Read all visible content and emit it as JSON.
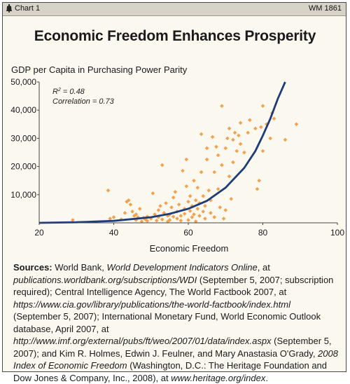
{
  "header": {
    "chart_tag": "Chart 1",
    "report_id": "WM 1861"
  },
  "colors": {
    "points": "#f4a14e",
    "curve": "#1d3c7a",
    "frame_bg": "#fbf8ef",
    "header_bg": "#d7d3c8"
  },
  "icons": [
    "liberty-bell-icon"
  ],
  "chart_data": {
    "type": "scatter",
    "title": "Economic Freedom Enhances Prosperity",
    "ylabel": "GDP per Capita in Purchasing Power Parity",
    "xlabel": "Economic Freedom",
    "xlim": [
      20,
      100
    ],
    "ylim": [
      0,
      50000
    ],
    "xticks": [
      "20",
      "40",
      "60",
      "80",
      "100"
    ],
    "yticks": [
      "10,000",
      "20,000",
      "30,000",
      "40,000",
      "50,000"
    ],
    "ytick_values": [
      10000,
      20000,
      30000,
      40000,
      50000
    ],
    "xtick_values": [
      20,
      40,
      60,
      80,
      100
    ],
    "grid": false,
    "annotations": {
      "r2_prefix": "R",
      "r2_sup": "2",
      "r2_suffix": " = 0.48",
      "correlation": "Correlation = 0.73"
    },
    "trendline": {
      "type": "exponential",
      "points": [
        [
          20,
          0
        ],
        [
          30,
          200
        ],
        [
          40,
          700
        ],
        [
          50,
          2000
        ],
        [
          55,
          3200
        ],
        [
          60,
          5000
        ],
        [
          65,
          7800
        ],
        [
          70,
          12500
        ],
        [
          75,
          19500
        ],
        [
          78,
          25500
        ],
        [
          80,
          31000
        ],
        [
          82,
          37000
        ],
        [
          84,
          44000
        ],
        [
          86,
          50000
        ]
      ]
    },
    "points": [
      [
        29,
        1000
      ],
      [
        38.5,
        11500
      ],
      [
        39,
        1500
      ],
      [
        40,
        2000
      ],
      [
        42,
        1200
      ],
      [
        43,
        3500
      ],
      [
        43.5,
        7500
      ],
      [
        44,
        8000
      ],
      [
        44.5,
        6500
      ],
      [
        45,
        4000
      ],
      [
        45.5,
        2500
      ],
      [
        46,
        3000
      ],
      [
        46,
        1000
      ],
      [
        46.5,
        2000
      ],
      [
        47,
        5000
      ],
      [
        47.5,
        500
      ],
      [
        48,
        1800
      ],
      [
        48.5,
        1200
      ],
      [
        49,
        700
      ],
      [
        49,
        2200
      ],
      [
        50,
        1500
      ],
      [
        50.5,
        10500
      ],
      [
        51,
        3000
      ],
      [
        51.5,
        800
      ],
      [
        52,
        2000
      ],
      [
        52,
        4500
      ],
      [
        52.5,
        6000
      ],
      [
        53,
        1200
      ],
      [
        53,
        20500
      ],
      [
        53.5,
        3500
      ],
      [
        54,
        7000
      ],
      [
        54.5,
        2500
      ],
      [
        54.5,
        500
      ],
      [
        55,
        1000
      ],
      [
        55,
        3000
      ],
      [
        55.5,
        5500
      ],
      [
        56,
        2200
      ],
      [
        56,
        9000
      ],
      [
        56.5,
        11000
      ],
      [
        57,
        1500
      ],
      [
        57,
        4000
      ],
      [
        57.5,
        6500
      ],
      [
        58,
        800
      ],
      [
        58,
        2500
      ],
      [
        58.5,
        18500
      ],
      [
        59,
        5000
      ],
      [
        59,
        3200
      ],
      [
        59.5,
        13000
      ],
      [
        59.5,
        22500
      ],
      [
        60,
        1000
      ],
      [
        60,
        7500
      ],
      [
        60.5,
        4200
      ],
      [
        60.5,
        9500
      ],
      [
        61,
        2000
      ],
      [
        61,
        6000
      ],
      [
        61.5,
        3000
      ],
      [
        61.5,
        15000
      ],
      [
        62,
        500
      ],
      [
        62,
        8000
      ],
      [
        62.5,
        5000
      ],
      [
        62.5,
        12500
      ],
      [
        63,
        2500
      ],
      [
        63,
        7000
      ],
      [
        63.5,
        18000
      ],
      [
        63.5,
        31500
      ],
      [
        64,
        4000
      ],
      [
        64,
        9500
      ],
      [
        64.5,
        1500
      ],
      [
        64.5,
        6000
      ],
      [
        65,
        22500
      ],
      [
        65,
        26500
      ],
      [
        65.5,
        11500
      ],
      [
        66,
        8000
      ],
      [
        66,
        3500
      ],
      [
        66.5,
        30500
      ],
      [
        67,
        18000
      ],
      [
        67,
        2000
      ],
      [
        67.5,
        27000
      ],
      [
        68,
        24000
      ],
      [
        68,
        12000
      ],
      [
        68.5,
        5500
      ],
      [
        69,
        20500
      ],
      [
        69,
        41500
      ],
      [
        69.5,
        1500
      ],
      [
        70,
        26500
      ],
      [
        70,
        4500
      ],
      [
        70.5,
        30000
      ],
      [
        71,
        33500
      ],
      [
        71,
        16500
      ],
      [
        71.5,
        8500
      ],
      [
        72,
        29500
      ],
      [
        72,
        21500
      ],
      [
        72.5,
        32000
      ],
      [
        73,
        25500
      ],
      [
        73.5,
        31000
      ],
      [
        74,
        35500
      ],
      [
        74,
        28000
      ],
      [
        75,
        25000
      ],
      [
        76,
        32000
      ],
      [
        76.5,
        36500
      ],
      [
        78,
        33500
      ],
      [
        78.5,
        12000
      ],
      [
        79,
        15000
      ],
      [
        79.5,
        34000
      ],
      [
        80,
        25500
      ],
      [
        80,
        41500
      ],
      [
        81,
        35000
      ],
      [
        82,
        30000
      ],
      [
        82.5,
        39000
      ],
      [
        83,
        37000
      ],
      [
        86,
        29500
      ],
      [
        89,
        35000
      ]
    ]
  },
  "sources": {
    "label": "Sources:",
    "t1": " World Bank, ",
    "i1": "World Development Indicators Online",
    "t2": ", at ",
    "i2": "publications.worldbank.org/subscriptions/WDI",
    "t3": " (September 5, 2007; subscription required); Central Intelligence Agency, The World Factbook 2007, at ",
    "i3": "https://www.cia.gov/library/publications/the-world-factbook/index.html",
    "t4": " (September 5, 2007); International Monetary Fund, World Economic Outlook database, April 2007, at ",
    "i4": "http://www.imf.org/external/pubs/ft/weo/2007/01/data/index.aspx",
    "t5": " (September 5, 2007); and Kim R. Holmes, Edwin J. Feulner, and Mary Anastasia O'Grady, ",
    "i5": "2008 Index of Economic Freedom",
    "t6": " (Washington, D.C.: The Heritage Foundation and Dow Jones & Company, Inc., 2008), at ",
    "i6": "www.heritage.org/index",
    "t7": "."
  }
}
